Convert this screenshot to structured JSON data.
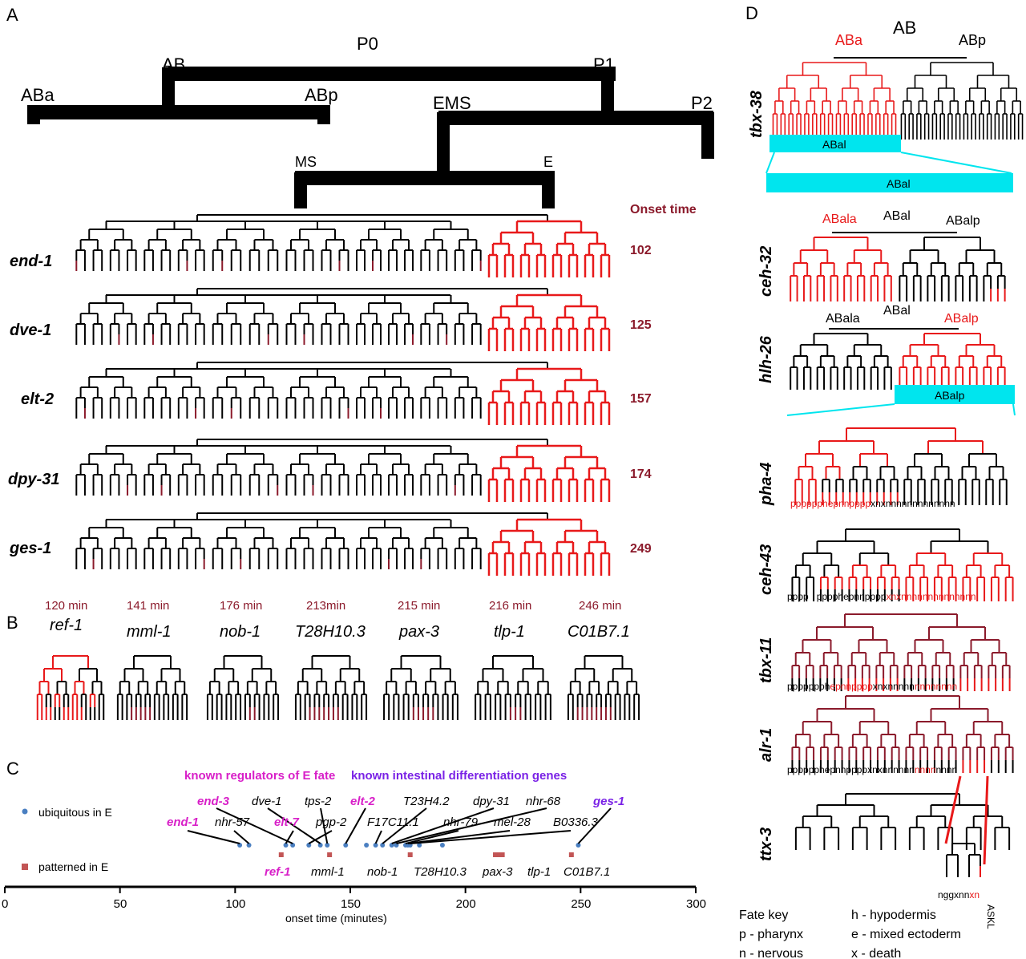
{
  "panel_labels": {
    "a": "A",
    "b": "B",
    "c": "C",
    "d": "D"
  },
  "colors": {
    "expressed": "#e8191a",
    "dark_red": "#8b1a2b",
    "cyan": "#00e5ee",
    "magenta": "#d81fc8",
    "purple": "#7a22e6",
    "blue_dot": "#4a7fc1",
    "patterned_dot": "#c25555"
  },
  "panel_a": {
    "cells": {
      "p0": "P0",
      "ab": "AB",
      "p1": "P1",
      "aba": "ABa",
      "abp": "ABp",
      "ems": "EMS",
      "p2": "P2",
      "ms": "MS",
      "e": "E"
    },
    "onset_header": "Onset time",
    "rows": [
      {
        "gene": "end-1",
        "onset": "102"
      },
      {
        "gene": "dve-1",
        "onset": "125"
      },
      {
        "gene": "elt-2",
        "onset": "157"
      },
      {
        "gene": "dpy-31",
        "onset": "174"
      },
      {
        "gene": "ges-1",
        "onset": "249"
      }
    ]
  },
  "panel_b": [
    {
      "time": "120 min",
      "gene": "ref-1"
    },
    {
      "time": "141 min",
      "gene": "mml-1"
    },
    {
      "time": "176 min",
      "gene": "nob-1"
    },
    {
      "time": "213min",
      "gene": "T28H10.3"
    },
    {
      "time": "215 min",
      "gene": "pax-3"
    },
    {
      "time": "216 min",
      "gene": "tlp-1"
    },
    {
      "time": "246 min",
      "gene": "C01B7.1"
    }
  ],
  "panel_c": {
    "legend_regulators": "known regulators of E fate",
    "legend_differentiation": "known intestinal differentiation genes",
    "legend_ubiquitous": "ubiquitous in E",
    "legend_patterned": "patterned in E",
    "xlabel": "onset time (minutes)",
    "ticks": [
      "0",
      "50",
      "100",
      "150",
      "200",
      "250",
      "300"
    ],
    "ubiquitous_top": [
      {
        "label": "end-3",
        "kind": "regulator"
      },
      {
        "label": "dve-1",
        "kind": "other"
      },
      {
        "label": "tps-2",
        "kind": "other"
      },
      {
        "label": "elt-2",
        "kind": "regulator"
      },
      {
        "label": "T23H4.2",
        "kind": "other"
      },
      {
        "label": "dpy-31",
        "kind": "other"
      },
      {
        "label": "nhr-68",
        "kind": "other"
      },
      {
        "label": "ges-1",
        "kind": "differentiation"
      }
    ],
    "ubiquitous_bottom": [
      {
        "label": "end-1",
        "kind": "regulator"
      },
      {
        "label": "nhr-57",
        "kind": "other"
      },
      {
        "label": "elt-7",
        "kind": "regulator"
      },
      {
        "label": "pgp-2",
        "kind": "other"
      },
      {
        "label": "F17C11.1",
        "kind": "other"
      },
      {
        "label": "nhr-79",
        "kind": "other"
      },
      {
        "label": "mel-28",
        "kind": "other"
      },
      {
        "label": "B0336.3",
        "kind": "other"
      }
    ],
    "patterned": [
      {
        "label": "ref-1",
        "kind": "regulator"
      },
      {
        "label": "mml-1",
        "kind": "other"
      },
      {
        "label": "nob-1",
        "kind": "other"
      },
      {
        "label": "T28H10.3",
        "kind": "other"
      },
      {
        "label": "pax-3",
        "kind": "other"
      },
      {
        "label": "tlp-1",
        "kind": "other"
      },
      {
        "label": "C01B7.1",
        "kind": "other"
      }
    ]
  },
  "chart_data": {
    "type": "scatter",
    "xlabel": "onset time (minutes)",
    "xlim": [
      0,
      300
    ],
    "series": [
      {
        "name": "ubiquitous in E",
        "x": [
          102,
          106,
          122,
          125,
          132,
          137,
          140,
          148,
          157,
          161,
          164,
          168,
          170,
          174,
          175,
          176,
          180,
          190,
          249
        ],
        "y": [
          1,
          1,
          1,
          1,
          1,
          1,
          1,
          1,
          1,
          1,
          1,
          1,
          1,
          1,
          1,
          1,
          1,
          1,
          1
        ]
      },
      {
        "name": "patterned in E",
        "x": [
          120,
          141,
          176,
          213,
          215,
          216,
          246
        ],
        "y": [
          0,
          0,
          0,
          0,
          0,
          0,
          0
        ]
      }
    ]
  },
  "panel_d": {
    "top_labels": {
      "ab": "AB",
      "aba": "ABa",
      "abp": "ABp"
    },
    "abal_bar": "ABal",
    "abal_bar_big": "ABal",
    "abalp_bar": "ABalp",
    "ceh32": {
      "gene": "ceh-32",
      "left": "ABala",
      "mid": "ABal",
      "right": "ABalp"
    },
    "hlh26": {
      "gene": "hlh-26",
      "left": "ABala",
      "mid": "ABal",
      "right": "ABalp"
    },
    "tbx38_gene": "tbx-38",
    "rows": [
      {
        "gene": "pha-4",
        "fates_red": "pppppphepnnpppp",
        "fates_black": "xnxnnnnnnnnnnnnn"
      },
      {
        "gene": "ceh-43",
        "fates_black1": "pppp",
        "fates_black2": "pppphepnnpppp",
        "fates_red": "xnxnnnnnnnnnnnnnn"
      },
      {
        "gene": "tbx-11",
        "fates_black": "ppppppph",
        "fates_red": "epnnpppp",
        "fates_black2": "xnxnnnnn",
        "fates_red2": "nnnnnnnn"
      },
      {
        "gene": "alr-1",
        "fates_black": "pppppphepnnppppxnxnnnnnn",
        "fates_red": "nnnn",
        "fates_black2": "nnnn"
      },
      {
        "gene": "ttx-3",
        "fates_black": "nggxnn",
        "fates_red": "xn",
        "askl": "ASKL"
      }
    ],
    "fate_key": {
      "title": "Fate key",
      "items": [
        "p - pharynx",
        "n - nervous",
        "h - hypodermis",
        "e - mixed ectoderm",
        "x - death"
      ]
    }
  }
}
